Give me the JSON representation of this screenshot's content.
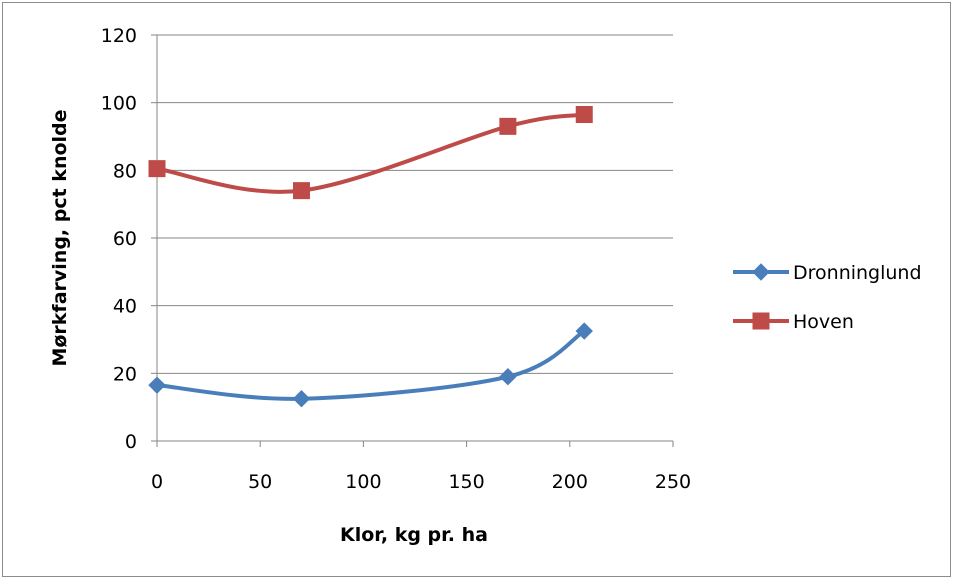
{
  "chart_data": {
    "type": "line",
    "smooth": true,
    "xlabel": "Klor, kg pr. ha",
    "ylabel": "Mørkfarving, pct knolde",
    "xlim": [
      0,
      250
    ],
    "ylim": [
      0,
      120
    ],
    "xticks": [
      0,
      50,
      100,
      150,
      200,
      250
    ],
    "yticks": [
      0,
      20,
      40,
      60,
      80,
      100,
      120
    ],
    "grid": "horizontal",
    "legend_position": "right",
    "series": [
      {
        "name": "Dronninglund",
        "color": "#4a7ebb",
        "marker": "diamond",
        "x": [
          0,
          70,
          170,
          207
        ],
        "y": [
          16.5,
          12.5,
          19,
          32.5
        ]
      },
      {
        "name": "Hoven",
        "color": "#be4b48",
        "marker": "square",
        "x": [
          0,
          70,
          170,
          207
        ],
        "y": [
          80.5,
          74,
          93,
          96.5
        ]
      }
    ]
  }
}
